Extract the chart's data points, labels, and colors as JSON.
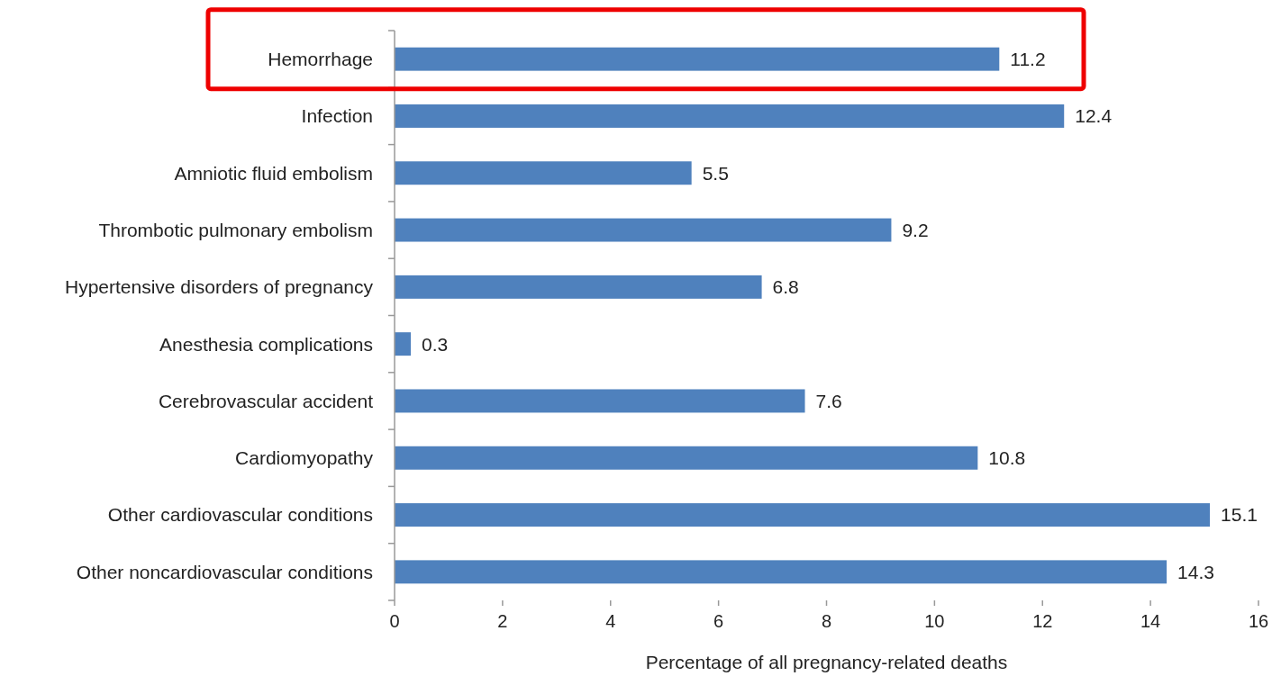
{
  "chart_data": {
    "type": "bar",
    "orientation": "horizontal",
    "categories": [
      "Hemorrhage",
      "Infection",
      "Amniotic fluid embolism",
      "Thrombotic pulmonary embolism",
      "Hypertensive disorders of pregnancy",
      "Anesthesia complications",
      "Cerebrovascular accident",
      "Cardiomyopathy",
      "Other cardiovascular conditions",
      "Other noncardiovascular conditions"
    ],
    "values": [
      11.2,
      12.4,
      5.5,
      9.2,
      6.8,
      0.3,
      7.6,
      10.8,
      15.1,
      14.3
    ],
    "color": "#4f81bd",
    "data_labels": true,
    "xlim": [
      0,
      16
    ],
    "xticks": [
      0,
      2,
      4,
      6,
      8,
      10,
      12,
      14,
      16
    ],
    "xlabel": "Percentage of all pregnancy-related deaths",
    "grid": false
  }
}
